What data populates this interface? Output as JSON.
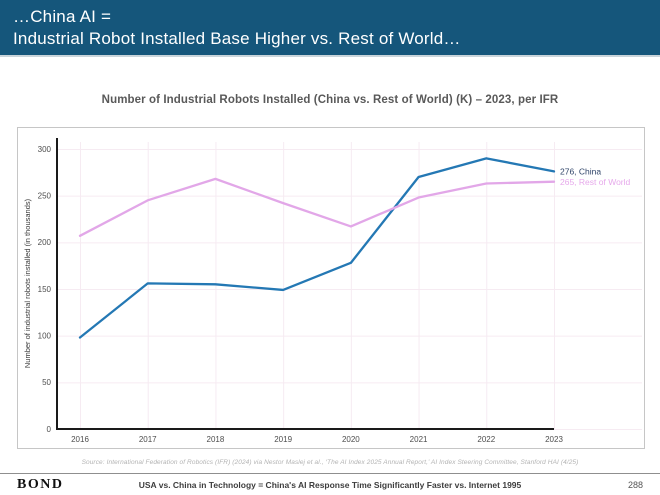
{
  "header": {
    "line1": "…China AI =",
    "line2": "Industrial Robot Installed Base Higher vs. Rest of World…"
  },
  "chart": {
    "title": "Number of Industrial Robots Installed (China vs. Rest of World) (K) – 2023, per IFR"
  },
  "chart_data": {
    "type": "line",
    "title": "Number of Industrial Robots Installed (China vs. Rest of World) (K) – 2023, per IFR",
    "categories": [
      "2016",
      "2017",
      "2018",
      "2019",
      "2020",
      "2021",
      "2022",
      "2023"
    ],
    "series": [
      {
        "name": "China",
        "color": "#2478B4",
        "end_label": "276, China",
        "end_label_color": "#2F4468",
        "values": [
          98,
          156,
          155,
          149,
          178,
          270,
          290,
          276
        ]
      },
      {
        "name": "Rest of World",
        "color": "#E2A7E8",
        "end_label": "265, Rest of World",
        "end_label_color": "#E6A9EB",
        "values": [
          207,
          245,
          268,
          242,
          217,
          248,
          263,
          265
        ]
      }
    ],
    "xlabel": "",
    "ylabel": "Number of industrial robots installed (in thousands)",
    "ylim": [
      0,
      300
    ],
    "yticks": [
      0,
      50,
      100,
      150,
      200,
      250,
      300
    ],
    "grid": true,
    "grid_color": "#f6ebf2",
    "axis_color": "#1a1a1a",
    "tick_label_color": "#4d4d4d",
    "legend_position": "end-of-line-labels"
  },
  "source": "Source: International Federation of Robotics (IFR) (2024) via Nestor Maslej et al., ‘The AI Index 2025 Annual Report,’ AI Index Steering Committee, Stanford HAI (4/25)",
  "footer": {
    "brand": "BOND",
    "title": "USA vs. China in Technology = China's AI Response Time Significantly Faster vs. Internet 1995",
    "page": "288"
  }
}
